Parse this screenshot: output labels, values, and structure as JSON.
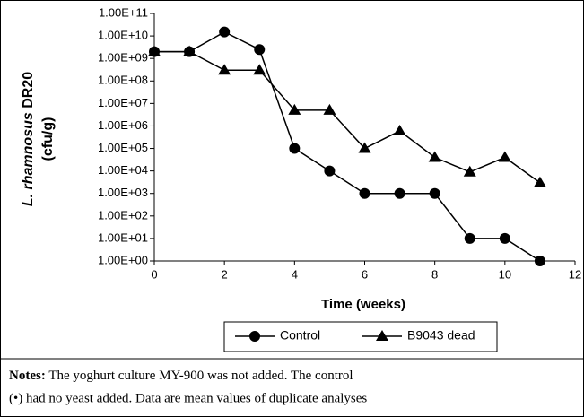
{
  "chart_data": {
    "type": "line",
    "ylog": true,
    "x": [
      0,
      1,
      2,
      3,
      4,
      5,
      6,
      7,
      8,
      9,
      10,
      11
    ],
    "series": [
      {
        "name": "Control",
        "color": "#000000",
        "marker": "circle",
        "values": [
          2000000000,
          2000000000,
          15000000000,
          2500000000,
          100000,
          10000,
          1000,
          1000,
          1000,
          10,
          10,
          1
        ]
      },
      {
        "name": "B9043 dead",
        "color": "#000000",
        "marker": "triangle",
        "values": [
          2000000000,
          2000000000,
          300000000,
          300000000,
          5000000,
          5000000,
          100000,
          600000,
          40000,
          9000,
          40000,
          3000
        ]
      }
    ],
    "xlim": [
      0,
      12
    ],
    "xticks": [
      0,
      2,
      4,
      6,
      8,
      10,
      12
    ],
    "ylim": [
      1,
      100000000000
    ],
    "yticks": [
      {
        "value": 1,
        "label": "1.00E+00"
      },
      {
        "value": 10,
        "label": "1.00E+01"
      },
      {
        "value": 100,
        "label": "1.00E+02"
      },
      {
        "value": 1000,
        "label": "1.00E+03"
      },
      {
        "value": 10000,
        "label": "1.00E+04"
      },
      {
        "value": 100000,
        "label": "1.00E+05"
      },
      {
        "value": 1000000,
        "label": "1.00E+06"
      },
      {
        "value": 10000000,
        "label": "1.00E+07"
      },
      {
        "value": 100000000,
        "label": "1.00E+08"
      },
      {
        "value": 1000000000,
        "label": "1.00E+09"
      },
      {
        "value": 10000000000,
        "label": "1.00E+10"
      },
      {
        "value": 100000000000,
        "label": "1.00E+11"
      }
    ],
    "xlabel": "Time (weeks)",
    "ylabel": {
      "italic": "L. rhamnosus",
      "rest": "DR20",
      "line2": "(cfu/g)"
    },
    "notes": {
      "label": "Notes:",
      "lines": [
        "The yoghurt culture MY-900 was not added.  The control",
        "(•) had no yeast added.  Data are mean values of duplicate analyses"
      ]
    }
  }
}
